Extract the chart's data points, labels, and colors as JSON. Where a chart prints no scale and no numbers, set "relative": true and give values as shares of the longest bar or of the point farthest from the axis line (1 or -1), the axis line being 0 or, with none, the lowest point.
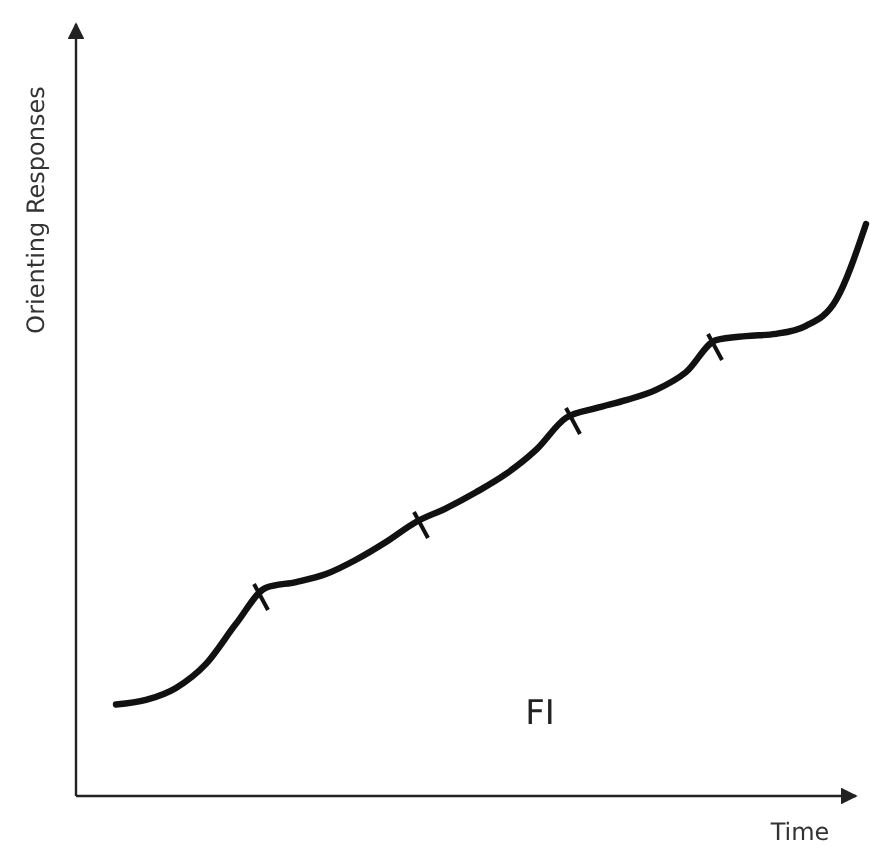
{
  "chart_data": {
    "type": "line",
    "relative": true,
    "xlabel": "Time",
    "ylabel": "Orienting Responses",
    "annotations": [
      "FI"
    ],
    "categories": [
      null,
      null,
      null,
      null,
      null,
      null,
      null,
      null,
      null,
      null,
      null,
      null,
      null,
      null,
      null,
      null,
      null,
      null,
      null,
      null,
      null,
      null,
      null,
      null,
      null,
      null
    ],
    "series": [
      {
        "color": "#111111",
        "values": [
          0.16,
          0.168,
          0.189,
          0.231,
          0.301,
          0.364,
          0.374,
          0.388,
          0.413,
          0.444,
          0.479,
          0.503,
          0.531,
          0.563,
          0.605,
          0.661,
          0.678,
          0.692,
          0.71,
          0.741,
          0.797,
          0.804,
          0.808,
          0.822,
          0.867,
          1
        ]
      }
    ],
    "marker": "none",
    "line_style": "solid"
  }
}
